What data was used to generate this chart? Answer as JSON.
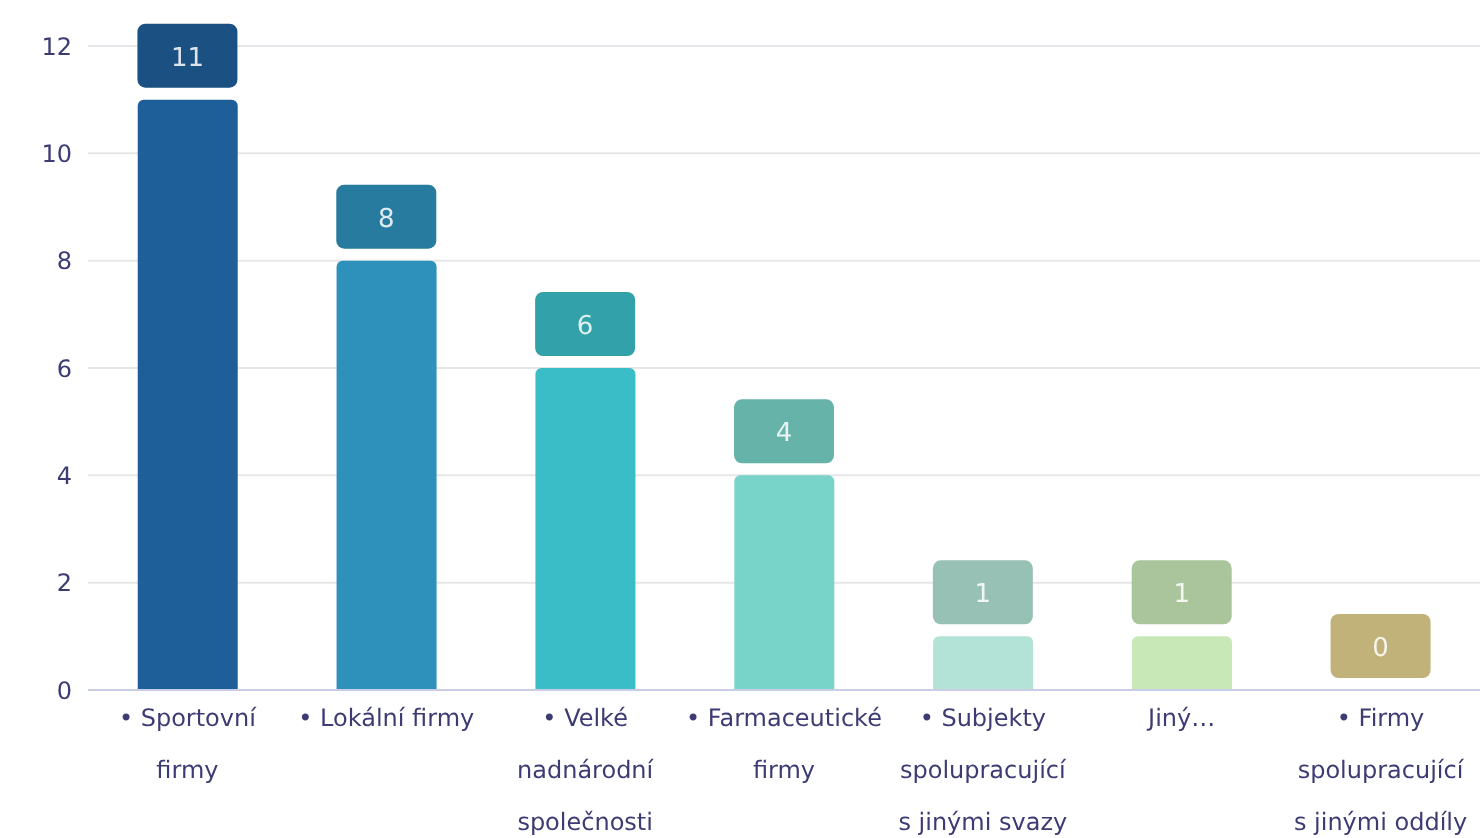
{
  "chart_data": {
    "type": "bar",
    "categories": [
      "• Sportovní firmy",
      "• Lokální firmy",
      "• Velké nadnárodní společnosti",
      "• Farmaceutické firmy",
      "• Subjekty spolupracující s jinými svazy",
      "Jiný…",
      "• Firmy spolupracující s jinými oddíly"
    ],
    "values": [
      11,
      8,
      6,
      4,
      1,
      1,
      0
    ],
    "colors": [
      "#1f5f99",
      "#2e91bb",
      "#3bbdc8",
      "#78d3c8",
      "#b3e3d6",
      "#c8e8b8",
      "#e3d18f"
    ],
    "ylim": [
      0,
      12
    ],
    "yticks": [
      0,
      2,
      4,
      6,
      8,
      10,
      12
    ],
    "grid": "y",
    "data_labels": true
  }
}
